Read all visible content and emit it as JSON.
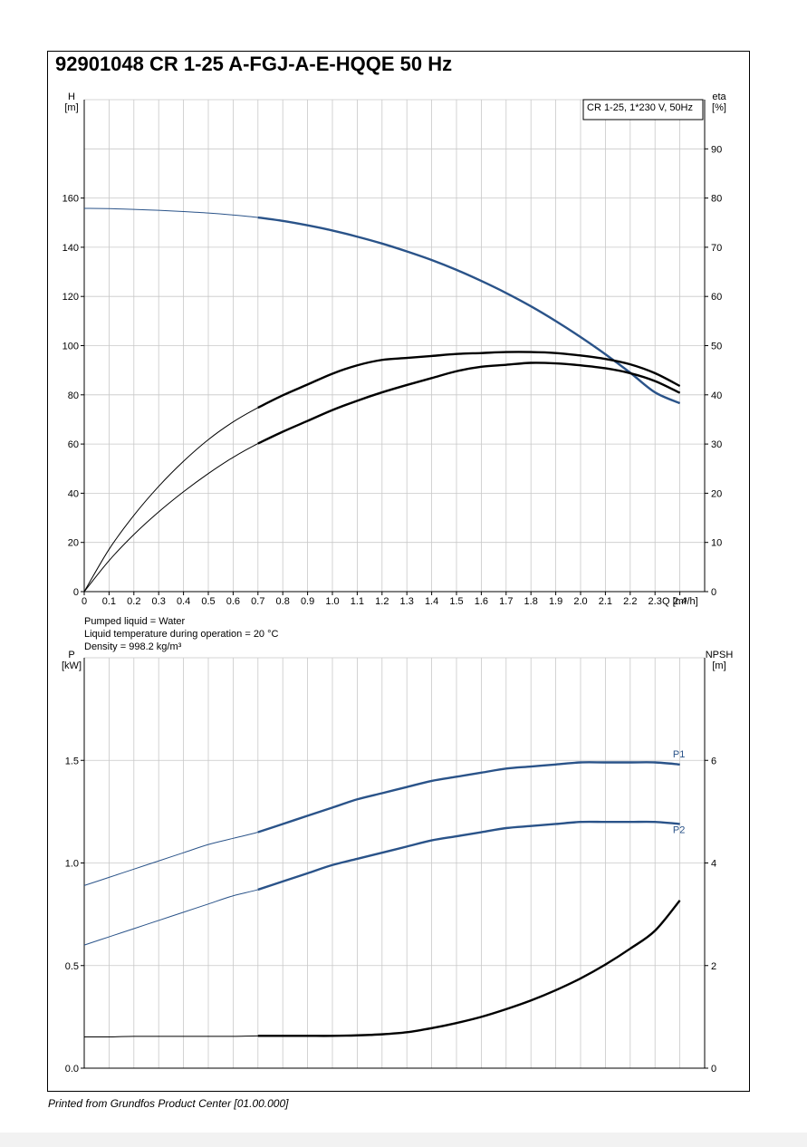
{
  "document": {
    "title": "92901048 CR 1-25 A-FGJ-A-E-HQQE 50 Hz",
    "footer": "Printed from Grundfos Product Center [01.00.000]",
    "liquid_info": [
      "Pumped liquid = Water",
      "Liquid temperature during operation = 20 °C",
      "Density = 998.2 kg/m³"
    ]
  },
  "colors": {
    "blue": "#2a5389",
    "black": "#000000",
    "grid": "#c8c8c8"
  },
  "chart_data": [
    {
      "type": "line",
      "name": "top",
      "legend": "CR 1-25, 1*230 V, 50Hz",
      "legend_position": "top-right",
      "grid": true,
      "xlabel": "Q [m³/h]",
      "ylabel_left": [
        "H",
        "[m]"
      ],
      "ylabel_right": [
        "eta",
        "[%]"
      ],
      "xlim": [
        0,
        2.5
      ],
      "ylim_left": [
        0,
        200
      ],
      "ylim_right": [
        0,
        100
      ],
      "x_ticks": [
        0,
        0.1,
        0.2,
        0.3,
        0.4,
        0.5,
        0.6,
        0.7,
        0.8,
        0.9,
        1.0,
        1.1,
        1.2,
        1.3,
        1.4,
        1.5,
        1.6,
        1.7,
        1.8,
        1.9,
        2.0,
        2.1,
        2.2,
        2.3,
        2.4
      ],
      "x_tick_labels": [
        "0",
        "0.1",
        "0.2",
        "0.3",
        "0.4",
        "0.5",
        "0.6",
        "0.7",
        "0.8",
        "0.9",
        "1.0",
        "1.1",
        "1.2",
        "1.3",
        "1.4",
        "1.5",
        "1.6",
        "1.7",
        "1.8",
        "1.9",
        "2.0",
        "2.1",
        "2.2",
        "2.3",
        "2.4"
      ],
      "y_ticks_left": [
        0,
        20,
        40,
        60,
        80,
        100,
        120,
        140,
        160
      ],
      "y_tick_labels_left": [
        "0",
        "20",
        "40",
        "60",
        "80",
        "100",
        "120",
        "140",
        "160"
      ],
      "y_ticks_right": [
        0,
        10,
        20,
        30,
        40,
        50,
        60,
        70,
        80,
        90
      ],
      "y_tick_labels_right": [
        "0",
        "10",
        "20",
        "30",
        "40",
        "50",
        "60",
        "70",
        "80",
        "90"
      ],
      "duty_range": [
        0.7,
        2.4
      ],
      "series": [
        {
          "axis": "left",
          "color": "blue",
          "x": [
            0,
            0.1,
            0.2,
            0.3,
            0.4,
            0.5,
            0.6,
            0.7,
            0.8,
            0.9,
            1.0,
            1.1,
            1.2,
            1.3,
            1.4,
            1.5,
            1.6,
            1.7,
            1.8,
            1.9,
            2.0,
            2.1,
            2.2,
            2.3,
            2.4
          ],
          "y": [
            155.8,
            155.7,
            155.4,
            155.0,
            154.5,
            153.9,
            153.1,
            152.1,
            150.7,
            148.9,
            146.8,
            144.3,
            141.5,
            138.3,
            134.8,
            130.8,
            126.3,
            121.4,
            116.0,
            110.0,
            103.5,
            96.5,
            89.0,
            81.0,
            76.6
          ]
        },
        {
          "axis": "right",
          "color": "black",
          "x": [
            0,
            0.1,
            0.2,
            0.3,
            0.4,
            0.5,
            0.6,
            0.7,
            0.8,
            0.9,
            1.0,
            1.1,
            1.2,
            1.3,
            1.4,
            1.5,
            1.6,
            1.7,
            1.8,
            1.9,
            2.0,
            2.1,
            2.2,
            2.3,
            2.4
          ],
          "y": [
            0,
            6.3,
            11.6,
            16.2,
            20.3,
            24.0,
            27.3,
            30.1,
            32.5,
            34.7,
            36.9,
            38.8,
            40.5,
            42.0,
            43.4,
            44.8,
            45.7,
            46.1,
            46.5,
            46.4,
            46.0,
            45.4,
            44.4,
            42.8,
            40.4
          ]
        },
        {
          "axis": "right",
          "color": "black",
          "x": [
            0,
            0.1,
            0.2,
            0.3,
            0.4,
            0.5,
            0.6,
            0.7,
            0.8,
            0.9,
            1.0,
            1.1,
            1.2,
            1.3,
            1.4,
            1.5,
            1.6,
            1.7,
            1.8,
            1.9,
            2.0,
            2.1,
            2.2,
            2.3,
            2.4
          ],
          "y": [
            0,
            8.6,
            15.5,
            21.4,
            26.5,
            30.9,
            34.5,
            37.4,
            39.9,
            42.1,
            44.3,
            46.0,
            47.1,
            47.5,
            47.9,
            48.3,
            48.5,
            48.7,
            48.7,
            48.5,
            48.0,
            47.3,
            46.2,
            44.4,
            41.8
          ]
        }
      ]
    },
    {
      "type": "line",
      "name": "bottom",
      "grid": true,
      "ylabel_left": [
        "P",
        "[kW]"
      ],
      "ylabel_right": [
        "NPSH",
        "[m]"
      ],
      "xlim": [
        0,
        2.5
      ],
      "ylim_left": [
        0,
        2.0
      ],
      "ylim_right": [
        0,
        8
      ],
      "y_ticks_left": [
        0,
        0.5,
        1.0,
        1.5
      ],
      "y_tick_labels_left": [
        "0.0",
        "0.5",
        "1.0",
        "1.5"
      ],
      "y_ticks_right": [
        0,
        2,
        4,
        6
      ],
      "y_tick_labels_right": [
        "0",
        "2",
        "4",
        "6"
      ],
      "duty_range": [
        0.7,
        2.4
      ],
      "series": [
        {
          "name": "P1",
          "axis": "left",
          "color": "blue",
          "x": [
            0,
            0.1,
            0.2,
            0.3,
            0.4,
            0.5,
            0.6,
            0.7,
            0.8,
            0.9,
            1.0,
            1.1,
            1.2,
            1.3,
            1.4,
            1.5,
            1.6,
            1.7,
            1.8,
            1.9,
            2.0,
            2.1,
            2.2,
            2.3,
            2.4
          ],
          "y": [
            0.89,
            0.93,
            0.97,
            1.01,
            1.05,
            1.09,
            1.12,
            1.15,
            1.19,
            1.23,
            1.27,
            1.31,
            1.34,
            1.37,
            1.4,
            1.42,
            1.44,
            1.46,
            1.47,
            1.48,
            1.49,
            1.49,
            1.49,
            1.49,
            1.48
          ]
        },
        {
          "name": "P2",
          "axis": "left",
          "color": "blue",
          "x": [
            0,
            0.1,
            0.2,
            0.3,
            0.4,
            0.5,
            0.6,
            0.7,
            0.8,
            0.9,
            1.0,
            1.1,
            1.2,
            1.3,
            1.4,
            1.5,
            1.6,
            1.7,
            1.8,
            1.9,
            2.0,
            2.1,
            2.2,
            2.3,
            2.4
          ],
          "y": [
            0.6,
            0.64,
            0.68,
            0.72,
            0.76,
            0.8,
            0.84,
            0.87,
            0.91,
            0.95,
            0.99,
            1.02,
            1.05,
            1.08,
            1.11,
            1.13,
            1.15,
            1.17,
            1.18,
            1.19,
            1.2,
            1.2,
            1.2,
            1.2,
            1.19
          ]
        },
        {
          "axis": "right",
          "color": "black",
          "x": [
            0,
            0.1,
            0.2,
            0.3,
            0.4,
            0.5,
            0.6,
            0.7,
            0.8,
            0.9,
            1.0,
            1.1,
            1.2,
            1.3,
            1.4,
            1.5,
            1.6,
            1.7,
            1.8,
            1.9,
            2.0,
            2.1,
            2.2,
            2.3,
            2.4
          ],
          "y": [
            0.61,
            0.61,
            0.62,
            0.62,
            0.62,
            0.62,
            0.62,
            0.63,
            0.63,
            0.63,
            0.63,
            0.64,
            0.66,
            0.7,
            0.78,
            0.88,
            1.0,
            1.15,
            1.32,
            1.52,
            1.75,
            2.02,
            2.33,
            2.68,
            3.27
          ]
        }
      ]
    }
  ]
}
